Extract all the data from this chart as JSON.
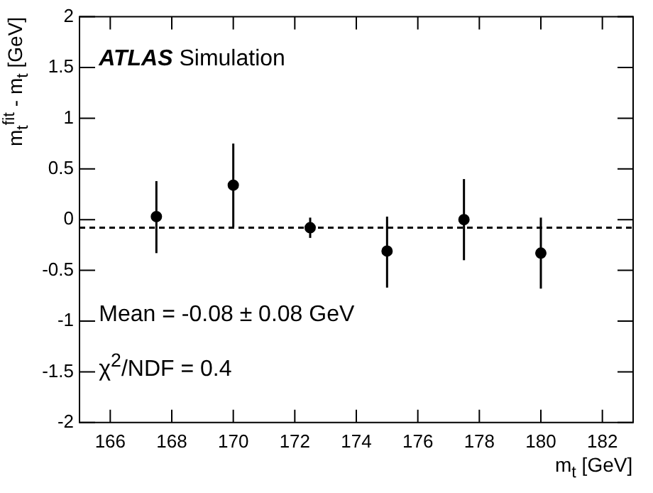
{
  "chart_data": {
    "type": "scatter",
    "xlabel": "m$_{t}$ [GeV]",
    "ylabel": "m$_{t}$$^{fit}$ - m$_{t}$ [GeV]",
    "x": [
      167.5,
      170,
      172.5,
      175,
      177.5,
      180
    ],
    "series": [
      {
        "color": "#000000",
        "values": [
          0.03,
          0.34,
          -0.08,
          -0.31,
          0.0,
          -0.33
        ],
        "errors": [
          [
            -0.33,
            0.38
          ],
          [
            -0.07,
            0.75
          ],
          [
            -0.18,
            0.02
          ],
          [
            -0.67,
            0.03
          ],
          [
            -0.4,
            0.4
          ],
          [
            -0.68,
            0.02
          ]
        ]
      }
    ],
    "xlim": [
      165,
      183
    ],
    "xticks": [
      166,
      168,
      170,
      172,
      174,
      176,
      178,
      180,
      182
    ],
    "ylim": [
      -2,
      2
    ],
    "yticks": [
      -2,
      -1.5,
      -1,
      -0.5,
      0,
      0.5,
      1,
      1.5,
      2
    ],
    "ref_lines": [
      {
        "axis": "y",
        "value": -0.08,
        "line_style": "dashed",
        "color": "#000000"
      }
    ],
    "annotations": [
      "ATLAS Simulation",
      "Mean = -0.08 ± 0.08 GeV",
      "χ$^{2}$/NDF = 0.4"
    ],
    "marker": "circle",
    "grid": false,
    "legend": false
  }
}
